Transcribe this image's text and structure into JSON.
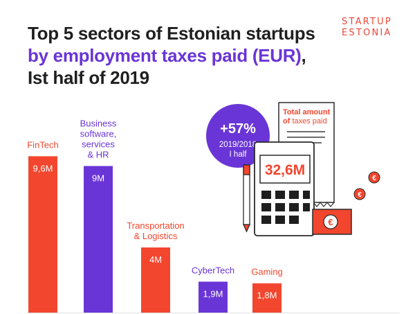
{
  "header": {
    "title_line1": "Top 5 sectors of Estonian startups",
    "title_line2": "by employment taxes paid (EUR)",
    "title_comma": ",",
    "title_line3": "Ist half of 2019"
  },
  "brand": {
    "line1": "STARTUP",
    "line2": "ESTONIA"
  },
  "colors": {
    "red": "#f2462e",
    "purple": "#6a35d6",
    "dark": "#1f1f1f",
    "brand": "#e8483a"
  },
  "illustration": {
    "growth": "+57%",
    "period_line1": "2019/2018",
    "period_line2": "I half",
    "total_line1": "Total amount",
    "total_line2_bold": "of",
    "total_line2_rest": "taxes paid",
    "total_value": "32,6M",
    "currency_symbol": "€"
  },
  "chart_data": {
    "type": "bar",
    "categories": [
      "FinTech",
      "Business software, services & HR",
      "Transportation & Logistics",
      "CyberTech",
      "Gaming"
    ],
    "category_lines": [
      [
        "FinTech"
      ],
      [
        "Business",
        "software,",
        "services",
        "& HR"
      ],
      [
        "Transportation",
        "& Logistics"
      ],
      [
        "CyberTech"
      ],
      [
        "Gaming"
      ]
    ],
    "values": [
      9.6,
      9.0,
      4.0,
      1.9,
      1.8
    ],
    "value_labels": [
      "9,6M",
      "9M",
      "4M",
      "1,9M",
      "1,8M"
    ],
    "bar_colors": [
      "#f2462e",
      "#6a35d6",
      "#f2462e",
      "#6a35d6",
      "#f2462e"
    ],
    "unit": "EUR"
  }
}
